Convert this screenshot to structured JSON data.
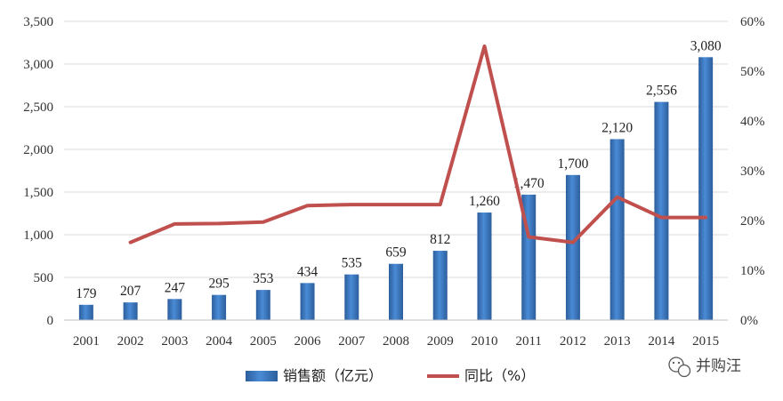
{
  "chart_data": {
    "type": "bar",
    "categories": [
      "2001",
      "2002",
      "2003",
      "2004",
      "2005",
      "2006",
      "2007",
      "2008",
      "2009",
      "2010",
      "2011",
      "2012",
      "2013",
      "2014",
      "2015"
    ],
    "series": [
      {
        "name": "销售额（亿元）",
        "type": "bar",
        "axis": "left",
        "values": [
          179,
          207,
          247,
          295,
          353,
          434,
          535,
          659,
          812,
          1260,
          1470,
          1700,
          2120,
          2556,
          3080
        ],
        "labels": [
          "179",
          "207",
          "247",
          "295",
          "353",
          "434",
          "535",
          "659",
          "812",
          "1,260",
          "1,470",
          "1,700",
          "2,120",
          "2,556",
          "3,080"
        ],
        "color": "#3A79C4"
      },
      {
        "name": "同比（%）",
        "type": "line",
        "axis": "right",
        "values": [
          null,
          15.6,
          19.3,
          19.4,
          19.7,
          23.0,
          23.2,
          23.2,
          23.2,
          55.0,
          16.7,
          15.6,
          24.7,
          20.6,
          20.6
        ],
        "color": "#C0504D"
      }
    ],
    "y_left": {
      "ylim": [
        0,
        3500
      ],
      "ticks": [
        0,
        500,
        1000,
        1500,
        2000,
        2500,
        3000,
        3500
      ],
      "tick_labels": [
        "0",
        "500",
        "1,000",
        "1,500",
        "2,000",
        "2,500",
        "3,000",
        "3,500"
      ]
    },
    "y_right": {
      "ylim": [
        0,
        60
      ],
      "ticks": [
        0,
        10,
        20,
        30,
        40,
        50,
        60
      ],
      "tick_labels": [
        "0%",
        "10%",
        "20%",
        "30%",
        "40%",
        "50%",
        "60%"
      ]
    },
    "grid": true,
    "legend": "bottom"
  },
  "watermark": {
    "text": "并购汪",
    "icon": "wechat-icon"
  }
}
